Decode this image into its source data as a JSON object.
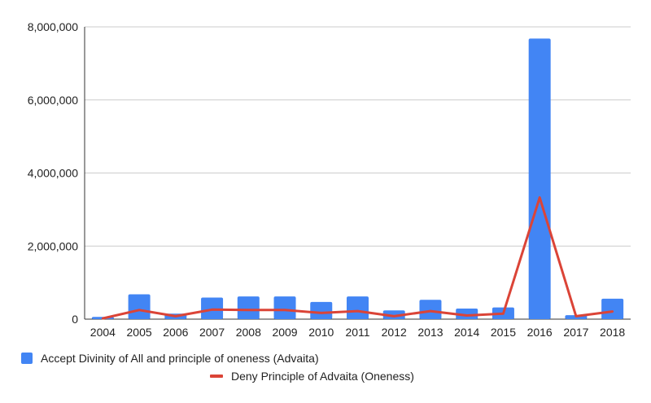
{
  "chart_data": {
    "type": "bar",
    "categories": [
      "2004",
      "2005",
      "2006",
      "2007",
      "2008",
      "2009",
      "2010",
      "2011",
      "2012",
      "2013",
      "2014",
      "2015",
      "2016",
      "2017",
      "2018"
    ],
    "series": [
      {
        "name": "Accept Divinity of All and principle of oneness (Advaita)",
        "kind": "bar",
        "color": "#4285f4",
        "values": [
          60000,
          680000,
          150000,
          590000,
          620000,
          620000,
          470000,
          620000,
          240000,
          530000,
          290000,
          320000,
          7680000,
          110000,
          560000
        ]
      },
      {
        "name": "Deny Principle of Advaita (Oneness)",
        "kind": "line",
        "color": "#db4437",
        "values": [
          20000,
          250000,
          80000,
          260000,
          250000,
          250000,
          170000,
          220000,
          80000,
          220000,
          100000,
          150000,
          3330000,
          80000,
          210000
        ]
      }
    ],
    "ylim": [
      0,
      8000000
    ],
    "yticks": [
      "0",
      "2,000,000",
      "4,000,000",
      "6,000,000",
      "8,000,000"
    ],
    "ytick_values": [
      0,
      2000000,
      4000000,
      6000000,
      8000000
    ],
    "grid": true,
    "legend_position": "bottom"
  }
}
